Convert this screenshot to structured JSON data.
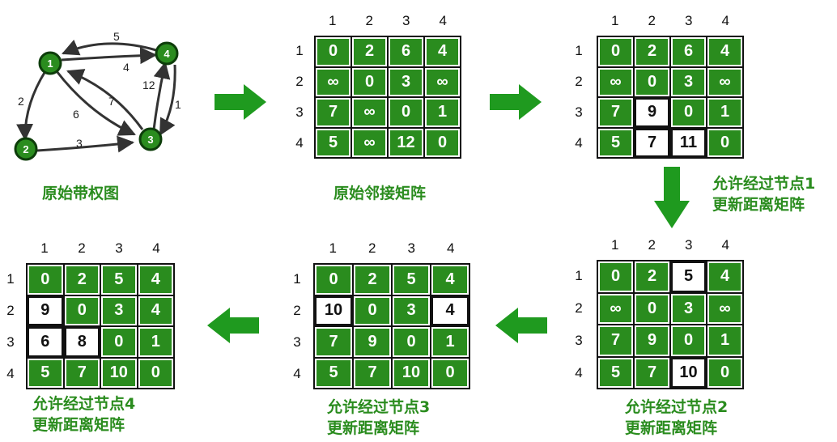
{
  "graph": {
    "nodes": [
      "1",
      "2",
      "3",
      "4"
    ],
    "edge_weights": [
      "5",
      "4",
      "2",
      "6",
      "7",
      "12",
      "1",
      "3"
    ],
    "caption": "原始带权图"
  },
  "axis_labels": [
    "1",
    "2",
    "3",
    "4"
  ],
  "matrices": [
    {
      "id": "original",
      "caption_lines": [
        "原始邻接矩阵"
      ],
      "cells": [
        [
          "0",
          "2",
          "6",
          "4"
        ],
        [
          "∞",
          "0",
          "3",
          "∞"
        ],
        [
          "7",
          "∞",
          "0",
          "1"
        ],
        [
          "5",
          "∞",
          "12",
          "0"
        ]
      ],
      "highlight": []
    },
    {
      "id": "via-node-1",
      "caption_lines": [
        "允许经过节点1",
        "更新距离矩阵"
      ],
      "cells": [
        [
          "0",
          "2",
          "6",
          "4"
        ],
        [
          "∞",
          "0",
          "3",
          "∞"
        ],
        [
          "7",
          "9",
          "0",
          "1"
        ],
        [
          "5",
          "7",
          "11",
          "0"
        ]
      ],
      "highlight": [
        [
          2,
          1
        ],
        [
          3,
          1
        ],
        [
          3,
          2
        ]
      ]
    },
    {
      "id": "via-node-2",
      "caption_lines": [
        "允许经过节点2",
        "更新距离矩阵"
      ],
      "cells": [
        [
          "0",
          "2",
          "5",
          "4"
        ],
        [
          "∞",
          "0",
          "3",
          "∞"
        ],
        [
          "7",
          "9",
          "0",
          "1"
        ],
        [
          "5",
          "7",
          "10",
          "0"
        ]
      ],
      "highlight": [
        [
          0,
          2
        ],
        [
          3,
          2
        ]
      ]
    },
    {
      "id": "via-node-3",
      "caption_lines": [
        "允许经过节点3",
        "更新距离矩阵"
      ],
      "cells": [
        [
          "0",
          "2",
          "5",
          "4"
        ],
        [
          "10",
          "0",
          "3",
          "4"
        ],
        [
          "7",
          "9",
          "0",
          "1"
        ],
        [
          "5",
          "7",
          "10",
          "0"
        ]
      ],
      "highlight": [
        [
          1,
          0
        ],
        [
          1,
          3
        ]
      ]
    },
    {
      "id": "via-node-4",
      "caption_lines": [
        "允许经过节点4",
        "更新距离矩阵"
      ],
      "cells": [
        [
          "0",
          "2",
          "5",
          "4"
        ],
        [
          "9",
          "0",
          "3",
          "4"
        ],
        [
          "6",
          "8",
          "0",
          "1"
        ],
        [
          "5",
          "7",
          "10",
          "0"
        ]
      ],
      "highlight": [
        [
          1,
          0
        ],
        [
          2,
          0
        ],
        [
          2,
          1
        ]
      ]
    }
  ],
  "colors": {
    "cell_green": "#2a8c1e",
    "arrow_green": "#1f9a1f",
    "highlight": "#ffffff",
    "caption": "#2a8c1e"
  }
}
